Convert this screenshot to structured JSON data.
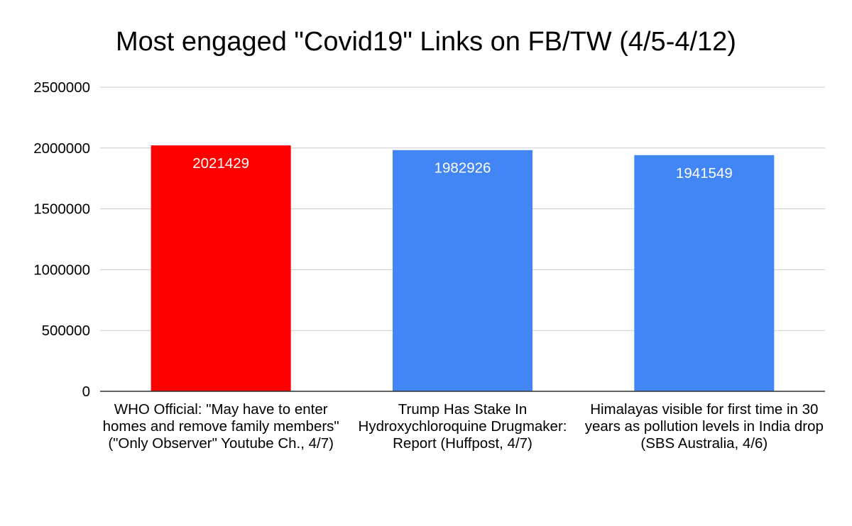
{
  "chart_data": {
    "type": "bar",
    "title": "Most engaged \"Covid19\" Links on FB/TW (4/5-4/12)",
    "xlabel": "",
    "ylabel": "",
    "categories": [
      "WHO Official: \"May have to enter homes and remove family members\" (\"Only Observer\" Youtube Ch., 4/7)",
      "Trump Has Stake In Hydroxychloroquine Drugmaker: Report (Huffpost, 4/7)",
      "Himalayas visible for first time in 30 years as pollution levels in India drop (SBS Australia, 4/6)"
    ],
    "values": [
      2021429,
      1982926,
      1941549
    ],
    "data_labels": [
      "2021429",
      "1982926",
      "1941549"
    ],
    "bar_colors": [
      "#ff0000",
      "#4285f4",
      "#4285f4"
    ],
    "ylim": [
      0,
      2500000
    ],
    "yticks": [
      0,
      500000,
      1000000,
      1500000,
      2000000,
      2500000
    ],
    "ytick_labels": [
      "0",
      "500000",
      "1000000",
      "1500000",
      "2000000",
      "2500000"
    ],
    "grid": true,
    "legend": "none"
  },
  "colors": {
    "gridline": "#cccccc",
    "axis": "#333333",
    "data_label_text": "#ffffff"
  }
}
